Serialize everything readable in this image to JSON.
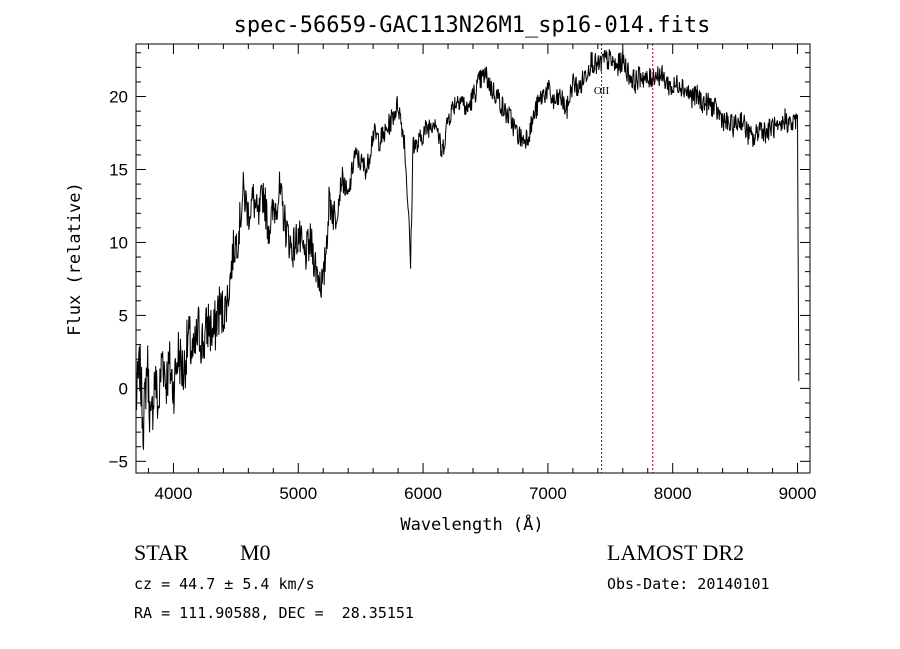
{
  "chart_data": {
    "type": "line",
    "title": "spec-56659-GAC113N26M1_sp16-014.fits",
    "xlabel": "Wavelength (Å)",
    "ylabel": "Flux (relative)",
    "xlim": [
      3700,
      9100
    ],
    "ylim": [
      -5.8,
      23.6
    ],
    "xticks": [
      4000,
      5000,
      6000,
      7000,
      8000,
      9000
    ],
    "yticks": [
      -5,
      0,
      5,
      10,
      15,
      20
    ],
    "grid": false,
    "lines": [
      {
        "name": "OII",
        "x": 7430
      },
      {
        "name": "",
        "x": 7840
      }
    ],
    "series": [
      {
        "x": [
          3700,
          3730,
          3760,
          3790,
          3820,
          3850,
          3880,
          3910,
          3940,
          3970,
          4000,
          4040,
          4080,
          4120,
          4160,
          4200,
          4240,
          4280,
          4320,
          4360,
          4400,
          4440,
          4480,
          4520,
          4560,
          4600,
          4640,
          4680,
          4720,
          4760,
          4800,
          4850,
          4900,
          4950,
          5000,
          5050,
          5100,
          5150,
          5200,
          5250,
          5300,
          5350,
          5400,
          5450,
          5500,
          5550,
          5600,
          5650,
          5700,
          5750,
          5800,
          5850,
          5880,
          5900,
          5920,
          5950,
          6000,
          6050,
          6100,
          6150,
          6200,
          6250,
          6300,
          6350,
          6400,
          6450,
          6500,
          6550,
          6600,
          6650,
          6700,
          6750,
          6800,
          6850,
          6900,
          6950,
          7000,
          7050,
          7100,
          7150,
          7200,
          7250,
          7300,
          7350,
          7400,
          7450,
          7500,
          7550,
          7600,
          7650,
          7700,
          7750,
          7800,
          7850,
          7900,
          7950,
          8000,
          8050,
          8100,
          8150,
          8200,
          8250,
          8300,
          8350,
          8400,
          8450,
          8500,
          8550,
          8600,
          8650,
          8700,
          8750,
          8800,
          8850,
          8900,
          8950,
          9000,
          9010
        ],
        "values": [
          -1.0,
          1.5,
          -2.5,
          2.0,
          -3.0,
          1.0,
          -1.5,
          2.5,
          0.5,
          1.5,
          0.0,
          2.5,
          1.0,
          3.5,
          2.0,
          4.0,
          3.0,
          4.5,
          3.5,
          5.5,
          5.0,
          6.5,
          9.5,
          10.5,
          13.5,
          12.0,
          13.0,
          11.5,
          13.5,
          11.0,
          12.0,
          13.5,
          11.0,
          9.5,
          10.5,
          9.0,
          10.0,
          8.0,
          7.0,
          13.0,
          11.5,
          14.5,
          13.0,
          16.0,
          15.5,
          15.0,
          17.5,
          17.0,
          17.5,
          18.5,
          19.5,
          17.0,
          12.5,
          8.5,
          17.0,
          16.5,
          17.5,
          18.0,
          18.5,
          16.0,
          18.5,
          19.5,
          20.0,
          19.0,
          20.0,
          21.0,
          21.5,
          20.5,
          20.0,
          19.0,
          18.5,
          17.5,
          17.0,
          17.5,
          19.0,
          20.0,
          20.5,
          19.5,
          20.0,
          19.0,
          21.0,
          20.5,
          21.5,
          22.5,
          22.0,
          22.5,
          22.5,
          22.0,
          22.5,
          21.5,
          21.0,
          21.5,
          21.0,
          21.5,
          21.5,
          21.0,
          20.5,
          21.0,
          20.5,
          20.0,
          20.0,
          19.5,
          19.5,
          19.0,
          18.5,
          18.0,
          18.0,
          18.5,
          17.5,
          17.0,
          18.0,
          17.5,
          18.0,
          17.5,
          18.5,
          18.0,
          18.5,
          0.5
        ]
      }
    ]
  },
  "info": {
    "class_label": "STAR",
    "subclass": "M0",
    "survey": "LAMOST DR2",
    "cz": "cz = 44.7 ± 5.4 km/s",
    "obs_date": "Obs-Date: 20140101",
    "coords": "RA = 111.90588, DEC =  28.35151"
  }
}
